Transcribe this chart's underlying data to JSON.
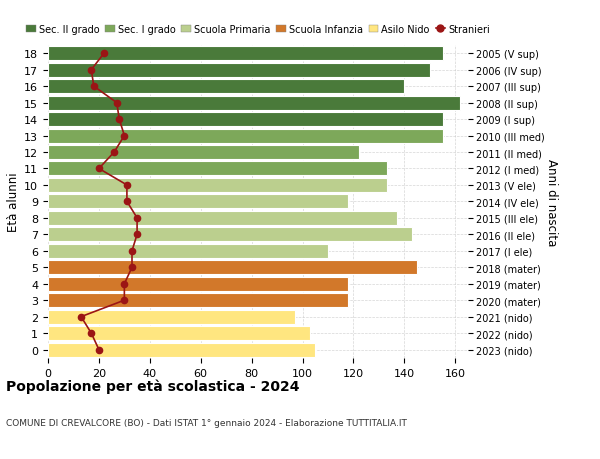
{
  "ages": [
    0,
    1,
    2,
    3,
    4,
    5,
    6,
    7,
    8,
    9,
    10,
    11,
    12,
    13,
    14,
    15,
    16,
    17,
    18
  ],
  "years_labels": [
    "2023 (nido)",
    "2022 (nido)",
    "2021 (nido)",
    "2020 (mater)",
    "2019 (mater)",
    "2018 (mater)",
    "2017 (I ele)",
    "2016 (II ele)",
    "2015 (III ele)",
    "2014 (IV ele)",
    "2013 (V ele)",
    "2012 (I med)",
    "2011 (II med)",
    "2010 (III med)",
    "2009 (I sup)",
    "2008 (II sup)",
    "2007 (III sup)",
    "2006 (IV sup)",
    "2005 (V sup)"
  ],
  "bar_values": [
    105,
    103,
    97,
    118,
    118,
    145,
    110,
    143,
    137,
    118,
    133,
    133,
    122,
    155,
    155,
    162,
    140,
    150,
    155
  ],
  "stranieri": [
    20,
    17,
    13,
    30,
    30,
    33,
    33,
    35,
    35,
    31,
    31,
    20,
    26,
    30,
    28,
    27,
    18,
    17,
    22
  ],
  "color_map": [
    "#FFE680",
    "#FFE680",
    "#FFE680",
    "#D2782A",
    "#D2782A",
    "#D2782A",
    "#BBCF8E",
    "#BBCF8E",
    "#BBCF8E",
    "#BBCF8E",
    "#BBCF8E",
    "#7DA85A",
    "#7DA85A",
    "#7DA85A",
    "#4A7A3A",
    "#4A7A3A",
    "#4A7A3A",
    "#4A7A3A",
    "#4A7A3A"
  ],
  "stranieri_color": "#9B1515",
  "ylabel_left": "Età alunni",
  "ylabel_right": "Anni di nascita",
  "title": "Popolazione per età scolastica - 2024",
  "subtitle": "COMUNE DI CREVALCORE (BO) - Dati ISTAT 1° gennaio 2024 - Elaborazione TUTTITALIA.IT",
  "xlim": [
    0,
    165
  ],
  "xticks": [
    0,
    20,
    40,
    60,
    80,
    100,
    120,
    140,
    160
  ],
  "legend_items": [
    {
      "label": "Sec. II grado",
      "color": "#4A7A3A"
    },
    {
      "label": "Sec. I grado",
      "color": "#7DA85A"
    },
    {
      "label": "Scuola Primaria",
      "color": "#BBCF8E"
    },
    {
      "label": "Scuola Infanzia",
      "color": "#D2782A"
    },
    {
      "label": "Asilo Nido",
      "color": "#FFE680"
    },
    {
      "label": "Stranieri",
      "color": "#9B1515"
    }
  ],
  "bg_color": "#FFFFFF",
  "grid_color": "#CCCCCC"
}
